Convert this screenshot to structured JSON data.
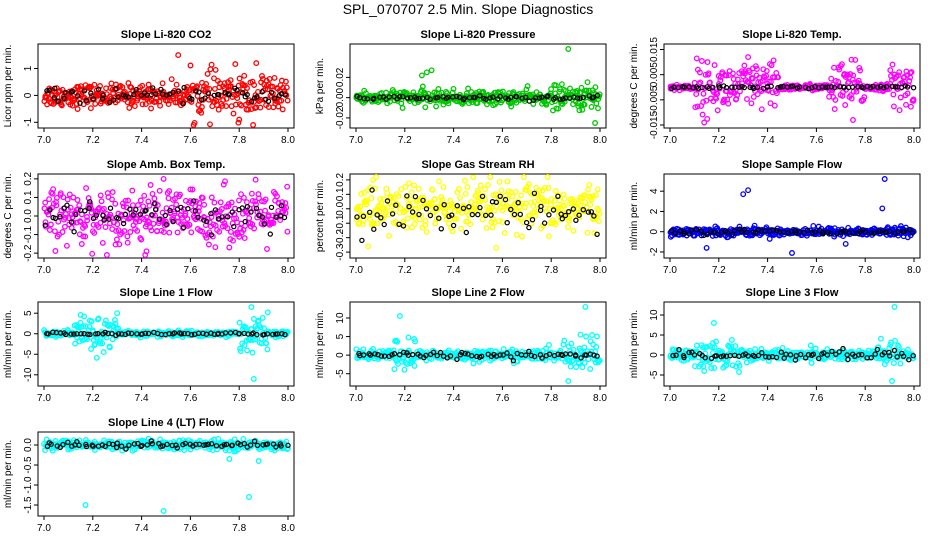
{
  "title": "SPL_070707  2.5 Min. Slope Diagnostics",
  "colors": {
    "overlay": "#000000",
    "frame": "#000000"
  },
  "chart_data": [
    {
      "type": "scatter",
      "title": "Slope Li-820 CO2",
      "xlabel": "",
      "ylabel": "Licor ppm per min.",
      "xlim": [
        7.0,
        8.0
      ],
      "ylim": [
        -1.1,
        1.8
      ],
      "color": "#ff0000",
      "xticks": [
        "7.0",
        "7.2",
        "7.4",
        "7.6",
        "7.8",
        "8.0"
      ],
      "yticks": [
        "-1",
        "0",
        "1"
      ],
      "yticks_values": [
        -1,
        0,
        1
      ],
      "main": {
        "base": 0,
        "spread": 0.35,
        "dense_from": 7.6,
        "dense_spread": 0.7,
        "outliers": [
          [
            7.55,
            1.5
          ],
          [
            7.8,
            -0.9
          ],
          [
            7.87,
            1.2
          ]
        ]
      },
      "overlay": {
        "base": 0,
        "spread": 0.2
      }
    },
    {
      "type": "scatter",
      "title": "Slope Li-820 Pressure",
      "xlabel": "",
      "ylabel": "kPa per min.",
      "xlim": [
        7.0,
        8.0
      ],
      "ylim": [
        -0.027,
        0.05
      ],
      "color": "#00c800",
      "xticks": [
        "7.0",
        "7.2",
        "7.4",
        "7.6",
        "7.8",
        "8.0"
      ],
      "yticks": [
        "-0.02",
        "0.00",
        "0.02"
      ],
      "yticks_values": [
        -0.02,
        0,
        0.02
      ],
      "main": {
        "base": 0,
        "spread": 0.006,
        "dense_from": 7.8,
        "dense_spread": 0.01,
        "outliers": [
          [
            7.29,
            0.025
          ],
          [
            7.31,
            0.027
          ],
          [
            7.27,
            0.022
          ],
          [
            7.87,
            0.048
          ],
          [
            7.98,
            -0.025
          ]
        ]
      },
      "overlay": {
        "base": 0,
        "spread": 0.002
      }
    },
    {
      "type": "scatter",
      "title": "Slope Li-820 Temp.",
      "xlabel": "",
      "ylabel": "degrees C per min.",
      "xlim": [
        7.0,
        8.0
      ],
      "ylim": [
        -0.015,
        0.016
      ],
      "color": "#ff00ff",
      "xticks": [
        "7.0",
        "7.2",
        "7.4",
        "7.6",
        "7.8",
        "8.0"
      ],
      "yticks": [
        "-0.015",
        "-0.005",
        "0.005",
        "0.015"
      ],
      "yticks_values": [
        -0.015,
        -0.005,
        0.005,
        0.015
      ],
      "main": {
        "base": 0,
        "spread": 0.001,
        "burst_ranges": [
          [
            7.1,
            7.45
          ],
          [
            7.65,
            7.8
          ],
          [
            7.9,
            8.0
          ]
        ],
        "burst_spread": 0.008,
        "outliers": [
          [
            7.14,
            -0.014
          ],
          [
            7.32,
            0.012
          ],
          [
            7.75,
            -0.013
          ]
        ]
      },
      "overlay": {
        "base": 0,
        "spread": 0.0004
      }
    },
    {
      "type": "scatter",
      "title": "Slope Amb. Box Temp.",
      "xlabel": "",
      "ylabel": "degrees C per min.",
      "xlim": [
        7.0,
        8.0
      ],
      "ylim": [
        -0.21,
        0.21
      ],
      "color": "#ff00ff",
      "xticks": [
        "7.0",
        "7.2",
        "7.4",
        "7.6",
        "7.8",
        "8.0"
      ],
      "yticks": [
        "-0.2",
        "-0.1",
        "0.0",
        "0.1",
        "0.2"
      ],
      "yticks_values": [
        -0.2,
        -0.1,
        0,
        0.1,
        0.2
      ],
      "main": {
        "base": 0,
        "spread": 0.12,
        "outliers": [
          [
            7.49,
            0.2
          ],
          [
            7.42,
            -0.19
          ]
        ]
      },
      "overlay": {
        "base": 0,
        "spread": 0.07
      }
    },
    {
      "type": "scatter",
      "title": "Slope Gas Stream RH",
      "xlabel": "",
      "ylabel": "percent per min.",
      "xlim": [
        7.0,
        8.0
      ],
      "ylim": [
        -0.32,
        0.22
      ],
      "color": "#ffff00",
      "xticks": [
        "7.0",
        "7.2",
        "7.4",
        "7.6",
        "7.8",
        "8.0"
      ],
      "yticks": [
        "-0.3",
        "-0.2",
        "-0.1",
        "0.0",
        "0.1",
        "0.2"
      ],
      "yticks_values": [
        -0.3,
        -0.2,
        -0.1,
        0,
        0.1,
        0.2
      ],
      "main": {
        "base": 0,
        "spread": 0.15,
        "outliers": [
          [
            7.05,
            -0.26
          ],
          [
            7.07,
            0.2
          ]
        ]
      },
      "overlay": {
        "base": -0.02,
        "spread": 0.1
      }
    },
    {
      "type": "scatter",
      "title": "Slope Sample Flow",
      "xlabel": "",
      "ylabel": "ml/min per min.",
      "xlim": [
        7.0,
        8.0
      ],
      "ylim": [
        -2.3,
        5.4
      ],
      "color": "#0000ff",
      "xticks": [
        "7.0",
        "7.2",
        "7.4",
        "7.6",
        "7.8",
        "8.0"
      ],
      "yticks": [
        "-2",
        "0",
        "2",
        "4"
      ],
      "yticks_values": [
        -2,
        0,
        2,
        4
      ],
      "main": {
        "base": 0,
        "spread": 0.35,
        "outliers": [
          [
            7.3,
            3.7
          ],
          [
            7.32,
            4.1
          ],
          [
            7.88,
            5.2
          ],
          [
            7.87,
            2.3
          ],
          [
            7.5,
            -2.1
          ],
          [
            7.15,
            -1.6
          ],
          [
            7.72,
            -1.2
          ]
        ]
      },
      "overlay": {
        "base": 0,
        "spread": 0.2
      }
    },
    {
      "type": "scatter",
      "title": "Slope Line 1 Flow",
      "xlabel": "",
      "ylabel": "ml/min per min.",
      "xlim": [
        7.0,
        8.0
      ],
      "ylim": [
        -12,
        7
      ],
      "color": "#00ffff",
      "xticks": [
        "7.0",
        "7.2",
        "7.4",
        "7.6",
        "7.8",
        "8.0"
      ],
      "yticks": [
        "-10",
        "-5",
        "0",
        "5"
      ],
      "yticks_values": [
        -10,
        -5,
        0,
        5
      ],
      "main": {
        "base": 0,
        "spread": 0.6,
        "burst_ranges": [
          [
            7.12,
            7.3
          ],
          [
            7.8,
            7.92
          ]
        ],
        "burst_spread": 3.5,
        "outliers": [
          [
            7.86,
            -11
          ],
          [
            7.85,
            6.5
          ],
          [
            7.15,
            4.6
          ],
          [
            7.3,
            5
          ]
        ]
      },
      "overlay": {
        "base": 0,
        "spread": 0.25
      }
    },
    {
      "type": "scatter",
      "title": "Slope Line 2 Flow",
      "xlabel": "",
      "ylabel": "ml/min per min.",
      "xlim": [
        7.0,
        8.0
      ],
      "ylim": [
        -7.5,
        13.5
      ],
      "color": "#00ffff",
      "xticks": [
        "7.0",
        "7.2",
        "7.4",
        "7.6",
        "7.8",
        "8.0"
      ],
      "yticks": [
        "-5",
        "0",
        "5",
        "10"
      ],
      "yticks_values": [
        -5,
        0,
        5,
        10
      ],
      "main": {
        "base": 0,
        "spread": 1.2,
        "burst_ranges": [
          [
            7.15,
            7.25
          ],
          [
            7.85,
            8.0
          ]
        ],
        "burst_spread": 3.5,
        "outliers": [
          [
            7.94,
            13
          ],
          [
            7.18,
            10.5
          ],
          [
            7.87,
            -7
          ],
          [
            7.92,
            5.5
          ]
        ]
      },
      "overlay": {
        "base": 0,
        "spread": 0.8
      }
    },
    {
      "type": "scatter",
      "title": "Slope Line 3 Flow",
      "xlabel": "",
      "ylabel": "ml/min per min.",
      "xlim": [
        7.0,
        8.0
      ],
      "ylim": [
        -7,
        12.5
      ],
      "color": "#00ffff",
      "xticks": [
        "7.0",
        "7.2",
        "7.4",
        "7.6",
        "7.8",
        "8.0"
      ],
      "yticks": [
        "-5",
        "0",
        "5",
        "10"
      ],
      "yticks_values": [
        -5,
        0,
        5,
        10
      ],
      "main": {
        "base": 0,
        "spread": 1.2,
        "burst_ranges": [
          [
            7.1,
            7.3
          ],
          [
            7.85,
            7.95
          ]
        ],
        "burst_spread": 3,
        "outliers": [
          [
            7.92,
            12
          ],
          [
            7.91,
            -6.5
          ],
          [
            7.18,
            8
          ],
          [
            7.14,
            -4
          ]
        ]
      },
      "overlay": {
        "base": 0,
        "spread": 0.9
      }
    },
    {
      "type": "scatter",
      "title": "Slope Line 4 (LT) Flow",
      "xlabel": "",
      "ylabel": "ml/min per min.",
      "xlim": [
        7.0,
        8.0
      ],
      "ylim": [
        -1.7,
        0.25
      ],
      "color": "#00ffff",
      "xticks": [
        "7.0",
        "7.2",
        "7.4",
        "7.6",
        "7.8",
        "8.0"
      ],
      "yticks": [
        "-1.5",
        "-1.0",
        "-0.5",
        "0.0"
      ],
      "yticks_values": [
        -1.5,
        -1.0,
        -0.5,
        0
      ],
      "main": {
        "base": 0,
        "spread": 0.1,
        "outliers": [
          [
            7.17,
            -1.5
          ],
          [
            7.49,
            -1.65
          ],
          [
            7.84,
            -1.3
          ],
          [
            7.88,
            -0.4
          ],
          [
            7.76,
            -0.35
          ]
        ]
      },
      "overlay": {
        "base": 0,
        "spread": 0.06
      }
    }
  ]
}
